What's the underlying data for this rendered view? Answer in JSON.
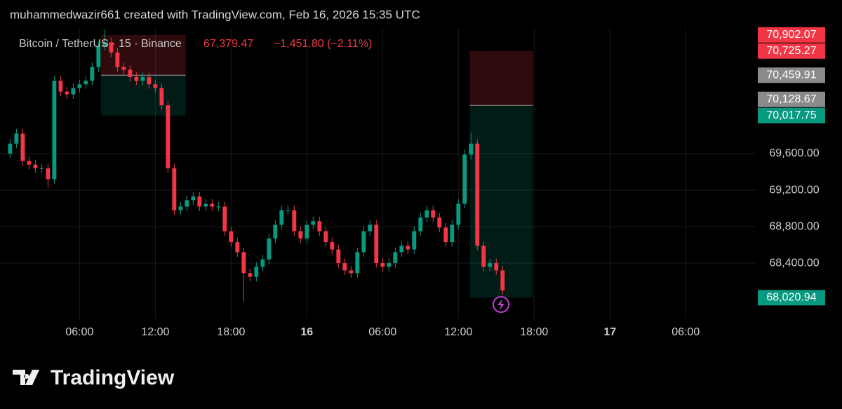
{
  "header": "muhammedwazir661 created with TradingView.com, Feb 16, 2026 15:35 UTC",
  "logo": "TradingView",
  "chart_data": {
    "type": "candlestick",
    "title": "Bitcoin / TetherUS · 15 · Binance",
    "quote": "67,379.47",
    "change": "−1,451.80 (−2.11%)",
    "up_color": "#089981",
    "down_color": "#f23645",
    "grid": true,
    "xlim": [
      -0.3,
      59.6
    ],
    "ylim": [
      67785,
      70977
    ],
    "xticks": [
      {
        "value": 6,
        "label": "06:00"
      },
      {
        "value": 12,
        "label": "12:00"
      },
      {
        "value": 18,
        "label": "18:00"
      },
      {
        "value": 24,
        "label": "16"
      },
      {
        "value": 30,
        "label": "06:00"
      },
      {
        "value": 36,
        "label": "12:00"
      },
      {
        "value": 42,
        "label": "18:00"
      },
      {
        "value": 48,
        "label": "17"
      },
      {
        "value": 54,
        "label": "06:00"
      }
    ],
    "yticks": [
      {
        "value": 68400,
        "label": "68,400.00"
      },
      {
        "value": 68800,
        "label": "68,800.00"
      },
      {
        "value": 69200,
        "label": "69,200.00"
      },
      {
        "value": 69600,
        "label": "69,600.00"
      }
    ],
    "x": [
      0.5,
      1,
      1.5,
      2,
      2.5,
      3,
      3.5,
      4,
      4.5,
      5,
      5.5,
      6,
      6.5,
      7,
      7.5,
      8,
      8.5,
      9,
      9.5,
      10,
      10.5,
      11,
      11.5,
      12,
      12.5,
      13,
      13.5,
      14,
      14.5,
      15,
      15.5,
      16,
      16.5,
      17,
      17.5,
      18,
      18.5,
      19,
      19.5,
      20,
      20.5,
      21,
      21.5,
      22,
      22.5,
      23,
      23.5,
      24,
      24.5,
      25,
      25.5,
      26,
      26.5,
      27,
      27.5,
      28,
      28.5,
      29,
      29.5,
      30,
      30.5,
      31,
      31.5,
      32,
      32.5,
      33,
      33.5,
      34,
      34.5,
      35,
      35.5,
      36,
      36.5,
      37,
      37.5,
      38,
      38.5,
      39,
      39.5
    ],
    "open": [
      69600,
      69710,
      69820,
      69520,
      69480,
      69440,
      69440,
      69320,
      70400,
      70280,
      70250,
      70320,
      70360,
      70400,
      70550,
      70780,
      70820,
      70710,
      70550,
      70520,
      70440,
      70400,
      70440,
      70360,
      70320,
      70130,
      69440,
      68980,
      69020,
      69090,
      69130,
      69020,
      69050,
      69020,
      69020,
      68750,
      68630,
      68520,
      68290,
      68250,
      68360,
      68440,
      68670,
      68820,
      68980,
      68980,
      68750,
      68670,
      68820,
      68860,
      68750,
      68630,
      68550,
      68400,
      68320,
      68290,
      68520,
      68750,
      68820,
      68400,
      68360,
      68400,
      68520,
      68590,
      68550,
      68750,
      68900,
      68980,
      68900,
      68790,
      68630,
      68820,
      69050,
      69590,
      69710,
      68590,
      68360,
      68400,
      68320
    ],
    "high": [
      69760,
      69870,
      69870,
      69570,
      69530,
      69490,
      69490,
      70450,
      70450,
      70330,
      70370,
      70410,
      70450,
      70600,
      70830,
      70960,
      70870,
      70760,
      70600,
      70570,
      70490,
      70490,
      70490,
      70410,
      70370,
      70180,
      69490,
      69070,
      69140,
      69180,
      69180,
      69100,
      69100,
      69070,
      69070,
      68800,
      68680,
      68570,
      68340,
      68410,
      68490,
      68720,
      68870,
      69030,
      69030,
      69030,
      68800,
      68870,
      68910,
      68910,
      68800,
      68680,
      68600,
      68450,
      68370,
      68570,
      68800,
      68870,
      68870,
      68450,
      68450,
      68570,
      68640,
      68640,
      68800,
      68950,
      69030,
      69030,
      68950,
      68840,
      68870,
      69100,
      69640,
      69830,
      69760,
      68640,
      68450,
      68450,
      68370
    ],
    "low": [
      69550,
      69660,
      69470,
      69430,
      69390,
      69390,
      69230,
      69270,
      70230,
      70200,
      70200,
      70270,
      70310,
      70350,
      70500,
      70730,
      70660,
      70500,
      70470,
      70390,
      70350,
      70350,
      70310,
      70270,
      70080,
      69390,
      68930,
      68930,
      68970,
      69040,
      68970,
      68970,
      68970,
      68970,
      68700,
      68580,
      68470,
      67980,
      68200,
      68200,
      68310,
      68390,
      68620,
      68770,
      68930,
      68700,
      68620,
      68620,
      68770,
      68700,
      68580,
      68500,
      68350,
      68270,
      68240,
      68240,
      68470,
      68700,
      68350,
      68310,
      68310,
      68350,
      68470,
      68500,
      68500,
      68700,
      68850,
      68850,
      68740,
      68580,
      68580,
      68770,
      69000,
      69540,
      68540,
      68310,
      68310,
      68270,
      68050
    ],
    "close": [
      69710,
      69820,
      69520,
      69480,
      69440,
      69440,
      69320,
      70400,
      70280,
      70250,
      70320,
      70360,
      70400,
      70550,
      70780,
      70820,
      70710,
      70550,
      70520,
      70440,
      70400,
      70440,
      70360,
      70320,
      70130,
      69440,
      68980,
      69020,
      69090,
      69130,
      69020,
      69050,
      69020,
      69020,
      68750,
      68630,
      68520,
      68290,
      68250,
      68360,
      68440,
      68670,
      68820,
      68980,
      68980,
      68750,
      68670,
      68820,
      68860,
      68750,
      68630,
      68550,
      68400,
      68320,
      68290,
      68520,
      68750,
      68820,
      68400,
      68360,
      68400,
      68520,
      68590,
      68550,
      68750,
      68900,
      68980,
      68900,
      68790,
      68630,
      68820,
      69050,
      69590,
      69710,
      68590,
      68360,
      68400,
      68320,
      68100
    ],
    "positions": [
      {
        "start": 7.7,
        "end": 14.4,
        "stop": 70902.07,
        "entry": 70459.91,
        "target": 70017.75
      },
      {
        "start": 36.9,
        "end": 41.9,
        "stop": 70725.27,
        "entry": 70128.67,
        "target": 68020.94
      }
    ],
    "price_labels": [
      {
        "value": 70902.07,
        "label": "70,902.07",
        "color": "#f23645"
      },
      {
        "value": 70725.27,
        "label": "70,725.27",
        "color": "#f23645"
      },
      {
        "value": 70459.91,
        "label": "70,459.91",
        "color": "#8a8a8a"
      },
      {
        "value": 70128.67,
        "label": "70,128.67",
        "color": "#8a8a8a"
      },
      {
        "value": 70017.75,
        "label": "70,017.75",
        "color": "#089981"
      },
      {
        "value": 68020.94,
        "label": "68,020.94",
        "color": "#089981"
      }
    ]
  }
}
